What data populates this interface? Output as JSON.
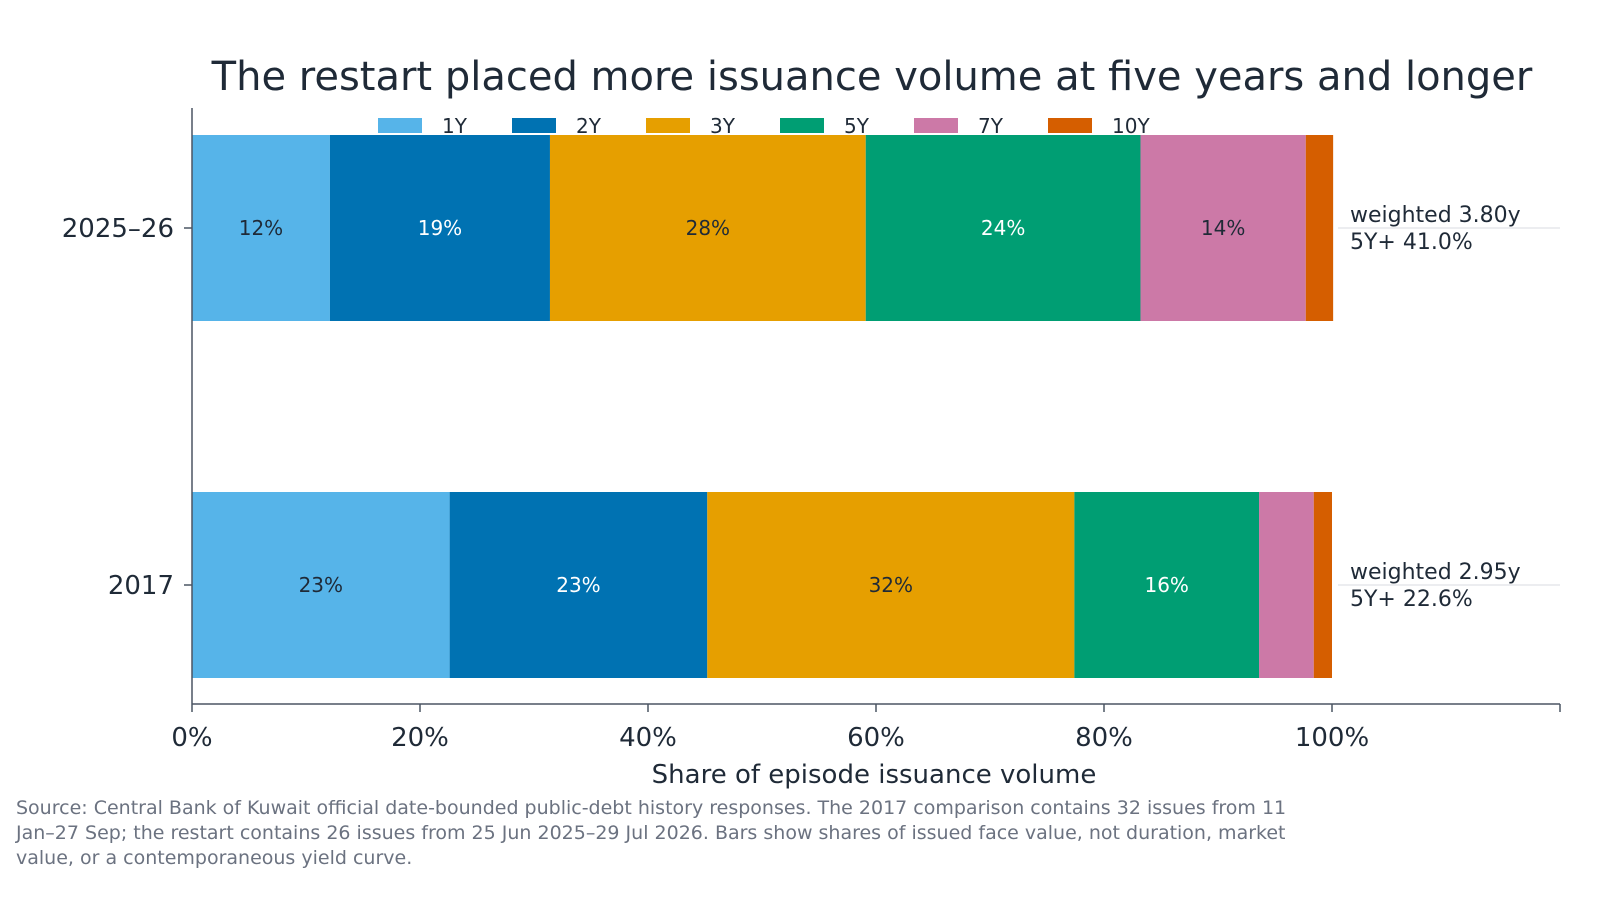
{
  "chart_data": {
    "type": "bar",
    "orientation": "horizontal",
    "stacked": true,
    "title": "The restart placed more issuance volume at five years and longer",
    "xlabel": "Share of episode issuance volume",
    "ylabel": "",
    "xlim": [
      0,
      120
    ],
    "x_ticks": [
      "0%",
      "20%",
      "40%",
      "60%",
      "80%",
      "100%"
    ],
    "x_tick_values": [
      0,
      20,
      40,
      60,
      80,
      100
    ],
    "categories": [
      "2025–26",
      "2017"
    ],
    "legend_placement": "top",
    "grid": false,
    "series": [
      {
        "name": "1Y",
        "color": "#56b4e9",
        "label_color": "#1f2a37",
        "values": [
          12.1,
          22.6
        ],
        "labels": [
          "12%",
          "23%"
        ]
      },
      {
        "name": "2Y",
        "color": "#0072b2",
        "label_color": "#ffffff",
        "values": [
          19.3,
          22.6
        ],
        "labels": [
          "19%",
          "23%"
        ]
      },
      {
        "name": "3Y",
        "color": "#e69f00",
        "label_color": "#1f2a37",
        "values": [
          27.7,
          32.2
        ],
        "labels": [
          "28%",
          "32%"
        ]
      },
      {
        "name": "5Y",
        "color": "#009e73",
        "label_color": "#ffffff",
        "values": [
          24.1,
          16.2
        ],
        "labels": [
          "24%",
          "16%"
        ]
      },
      {
        "name": "7Y",
        "color": "#cc79a7",
        "label_color": "#1f2a37",
        "values": [
          14.5,
          4.8
        ],
        "labels": [
          "14%",
          ""
        ]
      },
      {
        "name": "10Y",
        "color": "#d55e00",
        "label_color": "#ffffff",
        "values": [
          2.4,
          1.6
        ],
        "labels": [
          "",
          ""
        ]
      }
    ],
    "annotations": [
      {
        "category": "2025–26",
        "lines": [
          "weighted 3.80y",
          "5Y+ 41.0%"
        ]
      },
      {
        "category": "2017",
        "lines": [
          "weighted 2.95y",
          "5Y+ 22.6%"
        ]
      }
    ]
  },
  "source_note": "Source: Central Bank of Kuwait official date-bounded public-debt history responses. The 2017 comparison contains 32 issues from 11 Jan–27 Sep; the restart contains 26 issues from 25 Jun 2025–29 Jul 2026. Bars show shares of issued face value, not duration, market value, or a contemporaneous yield curve."
}
